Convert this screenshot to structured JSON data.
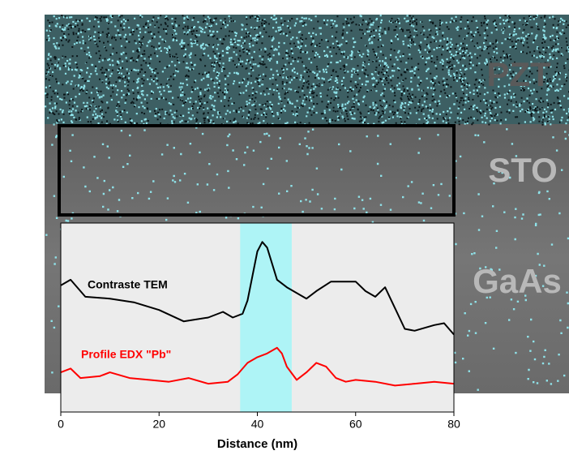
{
  "chart_data": {
    "type": "line",
    "x_label": "Distance (nm)",
    "xlim": [
      0,
      80
    ],
    "xticks": [
      0,
      20,
      40,
      60,
      80
    ],
    "ylim": [
      0,
      100
    ],
    "highlight_xlim": [
      36.5,
      47
    ],
    "highlight_color": "#aef4f6",
    "series": [
      {
        "name": "Contraste TEM",
        "color": "#000000",
        "x": [
          0,
          2,
          5,
          10,
          15,
          20,
          25,
          30,
          33,
          35,
          37,
          38,
          40,
          41,
          42,
          44,
          46,
          48,
          50,
          52,
          55,
          58,
          60,
          62,
          64,
          66,
          68,
          70,
          72,
          76,
          78,
          80
        ],
        "values": [
          67,
          70,
          61,
          60,
          58,
          54,
          48,
          50,
          53,
          50,
          52,
          59,
          85,
          90,
          87,
          70,
          66,
          63,
          60,
          64,
          69,
          69,
          69,
          64,
          61,
          66,
          55,
          44,
          43,
          46,
          47,
          41
        ]
      },
      {
        "name": "Profile EDX \"Pb\"",
        "color": "#ff0000",
        "x": [
          0,
          2,
          4,
          8,
          10,
          14,
          18,
          22,
          26,
          30,
          34,
          36,
          38,
          40,
          42,
          44,
          45,
          46,
          48,
          50,
          52,
          54,
          56,
          58,
          60,
          64,
          68,
          72,
          76,
          80
        ],
        "values": [
          21,
          23,
          18,
          19,
          21,
          18,
          17,
          16,
          18,
          15,
          16,
          20,
          26,
          29,
          31,
          34,
          31,
          24,
          17,
          21,
          26,
          24,
          18,
          16,
          17,
          16,
          14,
          15,
          16,
          15
        ]
      }
    ]
  },
  "image_labels": [
    "PZT",
    "STO",
    "GaAs"
  ]
}
